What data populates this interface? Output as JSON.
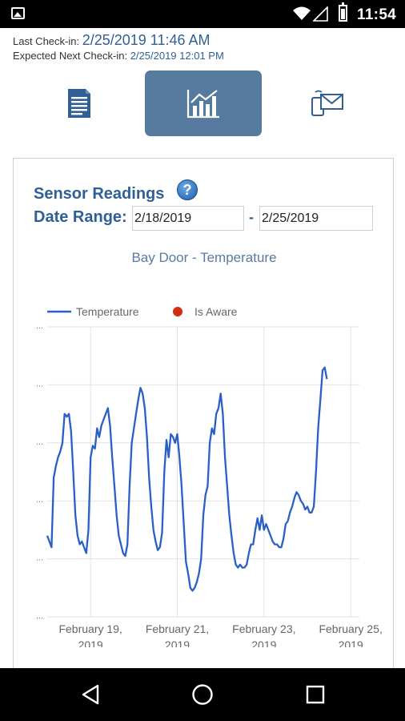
{
  "status_bar": {
    "time": "11:54"
  },
  "checkin": {
    "last_label": "Last Check-in:",
    "last_value": "2/25/2019 11:46 AM",
    "next_label": "Expected Next Check-in:",
    "next_value": "2/25/2019 12:01 PM"
  },
  "tabs": [
    {
      "icon": "document-icon",
      "active": false
    },
    {
      "icon": "chart-icon",
      "active": true
    },
    {
      "icon": "message-icon",
      "active": false
    }
  ],
  "readings": {
    "title": "Sensor Readings",
    "help_icon": "?",
    "range_label": "Date Range:",
    "date_from": "2/18/2019",
    "date_to": "2/25/2019",
    "separator": "-"
  },
  "colors": {
    "accent": "#2f5f95",
    "active_tab": "#56799e",
    "series": "#2a5fc7",
    "aware": "#d42e12"
  },
  "chart_data": {
    "type": "line",
    "title": "Bay Door - Temperature",
    "legend": [
      "Temperature",
      "Is Aware"
    ],
    "legend_placement": "top",
    "grid": true,
    "xlim": [
      0,
      7.2
    ],
    "x_ticks": [
      {
        "x": 1,
        "l1": "February 19,",
        "l2": "2019"
      },
      {
        "x": 3,
        "l1": "February 21,",
        "l2": "2019"
      },
      {
        "x": 5,
        "l1": "February 23,",
        "l2": "2019"
      },
      {
        "x": 7,
        "l1": "February 25,",
        "l2": "2019"
      }
    ],
    "y_tick_labels": [
      "...",
      "...",
      "...",
      "...",
      "...",
      "..."
    ],
    "series": [
      {
        "name": "Temperature",
        "points": [
          [
            0.0,
            0.28
          ],
          [
            0.05,
            0.26
          ],
          [
            0.1,
            0.24
          ],
          [
            0.15,
            0.48
          ],
          [
            0.2,
            0.52
          ],
          [
            0.25,
            0.55
          ],
          [
            0.3,
            0.57
          ],
          [
            0.35,
            0.6
          ],
          [
            0.4,
            0.7
          ],
          [
            0.45,
            0.69
          ],
          [
            0.5,
            0.7
          ],
          [
            0.55,
            0.64
          ],
          [
            0.6,
            0.5
          ],
          [
            0.65,
            0.35
          ],
          [
            0.7,
            0.28
          ],
          [
            0.75,
            0.25
          ],
          [
            0.8,
            0.26
          ],
          [
            0.85,
            0.24
          ],
          [
            0.9,
            0.22
          ],
          [
            0.95,
            0.3
          ],
          [
            1.0,
            0.55
          ],
          [
            1.05,
            0.59
          ],
          [
            1.1,
            0.58
          ],
          [
            1.15,
            0.65
          ],
          [
            1.2,
            0.62
          ],
          [
            1.25,
            0.66
          ],
          [
            1.3,
            0.68
          ],
          [
            1.35,
            0.7
          ],
          [
            1.4,
            0.72
          ],
          [
            1.45,
            0.66
          ],
          [
            1.5,
            0.55
          ],
          [
            1.55,
            0.45
          ],
          [
            1.6,
            0.35
          ],
          [
            1.65,
            0.28
          ],
          [
            1.7,
            0.25
          ],
          [
            1.75,
            0.22
          ],
          [
            1.8,
            0.21
          ],
          [
            1.85,
            0.25
          ],
          [
            1.9,
            0.45
          ],
          [
            1.95,
            0.6
          ],
          [
            2.0,
            0.65
          ],
          [
            2.05,
            0.7
          ],
          [
            2.1,
            0.75
          ],
          [
            2.15,
            0.79
          ],
          [
            2.2,
            0.77
          ],
          [
            2.25,
            0.72
          ],
          [
            2.3,
            0.62
          ],
          [
            2.35,
            0.48
          ],
          [
            2.4,
            0.38
          ],
          [
            2.45,
            0.3
          ],
          [
            2.5,
            0.26
          ],
          [
            2.55,
            0.23
          ],
          [
            2.6,
            0.24
          ],
          [
            2.65,
            0.29
          ],
          [
            2.7,
            0.5
          ],
          [
            2.75,
            0.61
          ],
          [
            2.8,
            0.55
          ],
          [
            2.85,
            0.63
          ],
          [
            2.9,
            0.62
          ],
          [
            2.95,
            0.6
          ],
          [
            3.0,
            0.63
          ],
          [
            3.05,
            0.55
          ],
          [
            3.1,
            0.45
          ],
          [
            3.15,
            0.32
          ],
          [
            3.2,
            0.19
          ],
          [
            3.25,
            0.15
          ],
          [
            3.3,
            0.1
          ],
          [
            3.35,
            0.09
          ],
          [
            3.4,
            0.1
          ],
          [
            3.45,
            0.12
          ],
          [
            3.5,
            0.15
          ],
          [
            3.55,
            0.2
          ],
          [
            3.6,
            0.35
          ],
          [
            3.65,
            0.42
          ],
          [
            3.7,
            0.45
          ],
          [
            3.75,
            0.6
          ],
          [
            3.8,
            0.65
          ],
          [
            3.85,
            0.63
          ],
          [
            3.9,
            0.7
          ],
          [
            3.95,
            0.72
          ],
          [
            4.0,
            0.77
          ],
          [
            4.05,
            0.7
          ],
          [
            4.1,
            0.55
          ],
          [
            4.15,
            0.45
          ],
          [
            4.2,
            0.35
          ],
          [
            4.25,
            0.28
          ],
          [
            4.3,
            0.22
          ],
          [
            4.35,
            0.18
          ],
          [
            4.4,
            0.17
          ],
          [
            4.45,
            0.18
          ],
          [
            4.5,
            0.17
          ],
          [
            4.55,
            0.17
          ],
          [
            4.6,
            0.18
          ],
          [
            4.65,
            0.22
          ],
          [
            4.7,
            0.25
          ],
          [
            4.75,
            0.25
          ],
          [
            4.8,
            0.3
          ],
          [
            4.85,
            0.34
          ],
          [
            4.9,
            0.3
          ],
          [
            4.95,
            0.35
          ],
          [
            5.0,
            0.3
          ],
          [
            5.05,
            0.32
          ],
          [
            5.1,
            0.3
          ],
          [
            5.15,
            0.28
          ],
          [
            5.2,
            0.26
          ],
          [
            5.25,
            0.25
          ],
          [
            5.3,
            0.25
          ],
          [
            5.35,
            0.24
          ],
          [
            5.4,
            0.24
          ],
          [
            5.45,
            0.27
          ],
          [
            5.5,
            0.32
          ],
          [
            5.55,
            0.33
          ],
          [
            5.6,
            0.36
          ],
          [
            5.65,
            0.38
          ],
          [
            5.7,
            0.41
          ],
          [
            5.75,
            0.43
          ],
          [
            5.8,
            0.42
          ],
          [
            5.85,
            0.4
          ],
          [
            5.9,
            0.39
          ],
          [
            5.95,
            0.37
          ],
          [
            6.0,
            0.38
          ],
          [
            6.05,
            0.36
          ],
          [
            6.1,
            0.36
          ],
          [
            6.15,
            0.38
          ],
          [
            6.2,
            0.5
          ],
          [
            6.25,
            0.65
          ],
          [
            6.3,
            0.75
          ],
          [
            6.35,
            0.85
          ],
          [
            6.4,
            0.86
          ],
          [
            6.45,
            0.82
          ]
        ]
      }
    ]
  }
}
